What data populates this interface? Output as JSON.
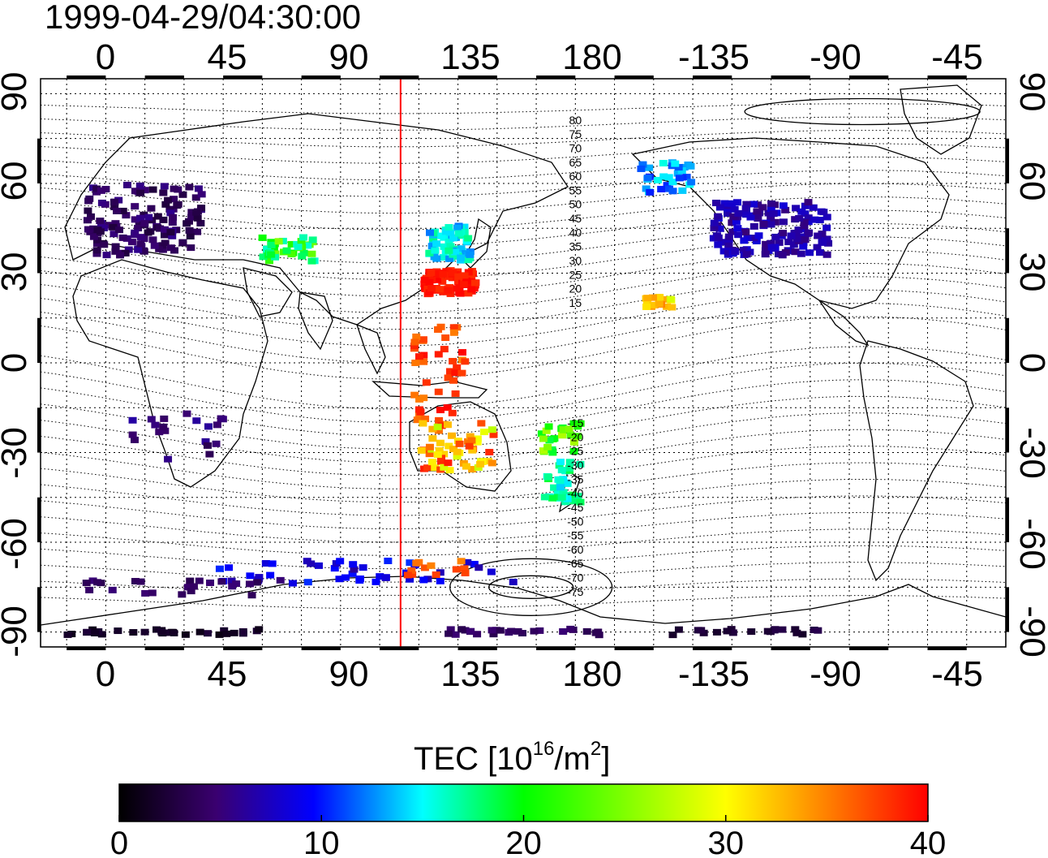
{
  "timestamp": "1999-04-29/04:30:00",
  "map": {
    "lon_top_labels": [
      "0",
      "45",
      "90",
      "135",
      "180",
      "-135",
      "-90",
      "-45"
    ],
    "lon_bottom_labels": [
      "0",
      "45",
      "90",
      "135",
      "180",
      "-135",
      "-90",
      "-45"
    ],
    "lat_left_labels": [
      "90",
      "60",
      "30",
      "0",
      "-30",
      "-60",
      "-90"
    ],
    "lat_right_labels": [
      "90",
      "60",
      "30",
      "0",
      "-30",
      "-60",
      "-90"
    ],
    "lon_range": [
      -25,
      345
    ],
    "lat_range": [
      -95,
      95
    ],
    "grid": "dotted",
    "subsolar_meridian_lon": 113,
    "contour_labels_north": [
      "80",
      "75",
      "70",
      "65",
      "60",
      "55",
      "50",
      "45",
      "40",
      "35",
      "30",
      "25",
      "20",
      "15"
    ],
    "contour_labels_south": [
      "-15",
      "-20",
      "-25",
      "-30",
      "-35",
      "-40",
      "-45",
      "-50",
      "-55",
      "-60",
      "-65",
      "-70",
      "-75"
    ]
  },
  "colorbar": {
    "title_main": "TEC  [10",
    "title_sup1": "16",
    "title_mid": "/m",
    "title_sup2": "2",
    "title_end": "]",
    "min": 0,
    "max": 40,
    "tick_labels": [
      "0",
      "10",
      "20",
      "30",
      "40"
    ],
    "colors": [
      "#000000",
      "#3a0070",
      "#0000ff",
      "#00ffff",
      "#00ff00",
      "#ffff00",
      "#ff8000",
      "#ff0000"
    ]
  }
}
